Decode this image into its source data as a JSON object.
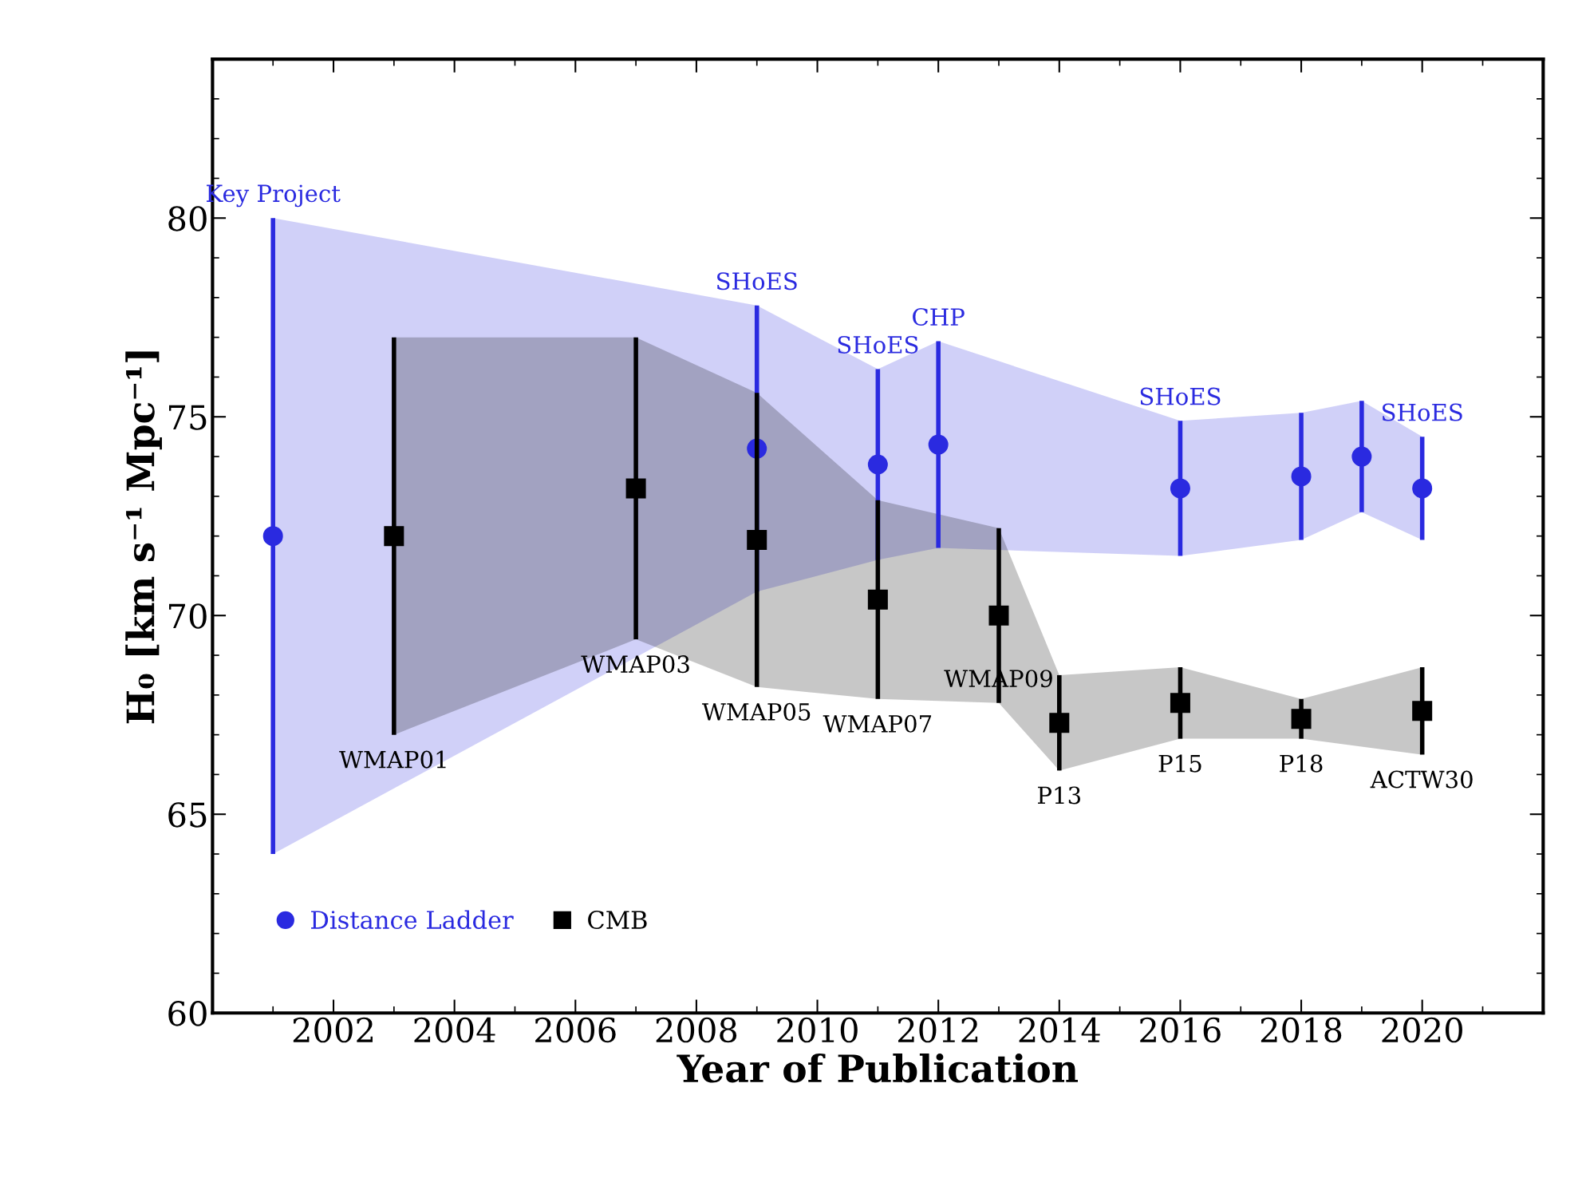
{
  "chart_data": {
    "type": "scatter",
    "xlabel": "Year of Publication",
    "ylabel": "H₀ [km s⁻¹ Mpc⁻¹]",
    "xlim": [
      2000,
      2022
    ],
    "ylim": [
      60,
      84
    ],
    "xticks": [
      2002,
      2004,
      2006,
      2008,
      2010,
      2012,
      2014,
      2016,
      2018,
      2020
    ],
    "yticks": [
      60,
      65,
      70,
      75,
      80
    ],
    "legend": "bottom left",
    "grid": false,
    "series": [
      {
        "name": "Distance Ladder",
        "color": "#2a2ae0",
        "marker": "circle",
        "x": [
          2001,
          2009,
          2011,
          2012,
          2016,
          2018,
          2019,
          2020
        ],
        "values": [
          72,
          74.2,
          73.8,
          74.3,
          73.2,
          73.5,
          74.0,
          73.2
        ],
        "errors": [
          8,
          3.6,
          2.4,
          2.6,
          1.7,
          1.6,
          1.4,
          1.3
        ],
        "lower": [
          64,
          70.6,
          71.4,
          71.7,
          71.5,
          71.9,
          72.6,
          71.9
        ],
        "upper": [
          80,
          77.8,
          76.2,
          76.9,
          74.9,
          75.1,
          75.4,
          74.5
        ]
      },
      {
        "name": "CMB",
        "color": "#000000",
        "marker": "square",
        "x": [
          2003,
          2007,
          2009,
          2011,
          2013,
          2014,
          2016,
          2018,
          2020
        ],
        "values": [
          72,
          73.2,
          71.9,
          70.4,
          70.0,
          67.3,
          67.8,
          67.4,
          67.6
        ],
        "errors": [
          5,
          3.8,
          3.7,
          2.5,
          2.2,
          1.2,
          0.9,
          0.5,
          1.1
        ],
        "lower": [
          67,
          69.4,
          68.2,
          67.9,
          67.8,
          66.1,
          66.9,
          66.9,
          66.5
        ],
        "upper": [
          77,
          77,
          75.6,
          72.9,
          72.2,
          68.5,
          68.7,
          67.9,
          68.7
        ]
      }
    ],
    "annotations": [
      {
        "text": "Key Project",
        "x": 2001,
        "y": 80
      },
      {
        "text": "SHoES",
        "x": 2009,
        "y": 77.8
      },
      {
        "text": "SHoES",
        "x": 2011,
        "y": 76.2
      },
      {
        "text": "CHP",
        "x": 2012,
        "y": 76.9
      },
      {
        "text": "SHoES",
        "x": 2016,
        "y": 74.9
      },
      {
        "text": "SHoES",
        "x": 2020,
        "y": 74.5
      },
      {
        "text": "WMAP01",
        "x": 2003,
        "y": 67
      },
      {
        "text": "WMAP03",
        "x": 2007,
        "y": 69.4
      },
      {
        "text": "WMAP05",
        "x": 2009,
        "y": 68.2
      },
      {
        "text": "WMAP07",
        "x": 2011,
        "y": 67.9
      },
      {
        "text": "WMAP09",
        "x": 2013,
        "y": 67.8
      },
      {
        "text": "P13",
        "x": 2014,
        "y": 66.1
      },
      {
        "text": "P15",
        "x": 2016,
        "y": 66.9
      },
      {
        "text": "P18",
        "x": 2018,
        "y": 66.9
      },
      {
        "text": "ACTW30",
        "x": 2020,
        "y": 66.5
      }
    ]
  }
}
